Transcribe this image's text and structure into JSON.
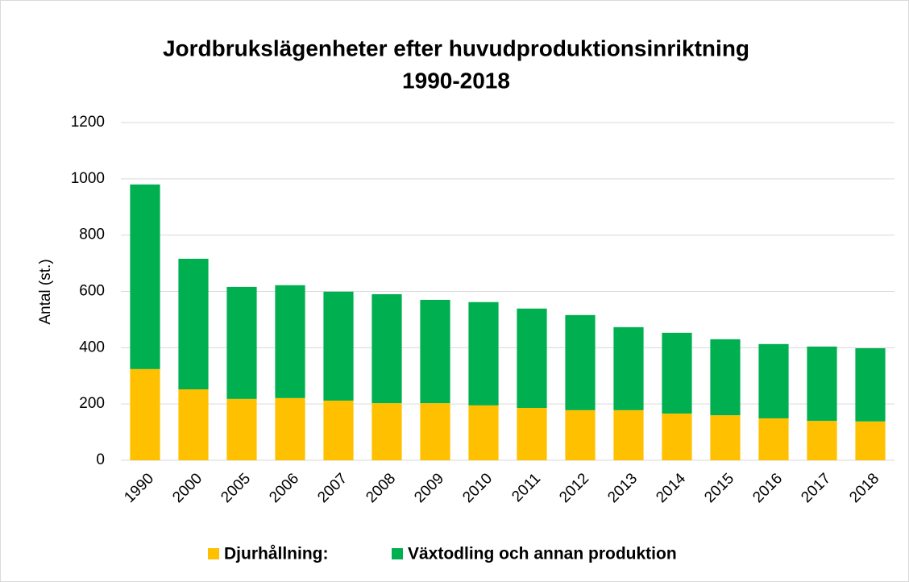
{
  "chart_data": {
    "type": "stacked_bar",
    "title": [
      "Jordbrukslägenheter efter huvudproduktionsinriktning",
      "1990-2018"
    ],
    "y_label": "Antal (st.)",
    "categories": [
      "1990",
      "2000",
      "2005",
      "2006",
      "2007",
      "2008",
      "2009",
      "2010",
      "2011",
      "2012",
      "2013",
      "2014",
      "2015",
      "2016",
      "2017",
      "2018"
    ],
    "series": [
      {
        "name": "Djurhållning:",
        "color": "#ffc000",
        "values": [
          324,
          252,
          218,
          221,
          212,
          203,
          203,
          195,
          186,
          178,
          178,
          166,
          160,
          149,
          140,
          138
        ]
      },
      {
        "name": "Växtodling och annan produktion",
        "color": "#00b050",
        "values": [
          656,
          464,
          398,
          401,
          387,
          387,
          367,
          367,
          353,
          338,
          295,
          287,
          270,
          264,
          264,
          260
        ]
      }
    ],
    "ylim": [
      0,
      1200
    ],
    "yticks": [
      0,
      200,
      400,
      600,
      800,
      1000,
      1200
    ],
    "grid": true,
    "legend": "bottom"
  }
}
